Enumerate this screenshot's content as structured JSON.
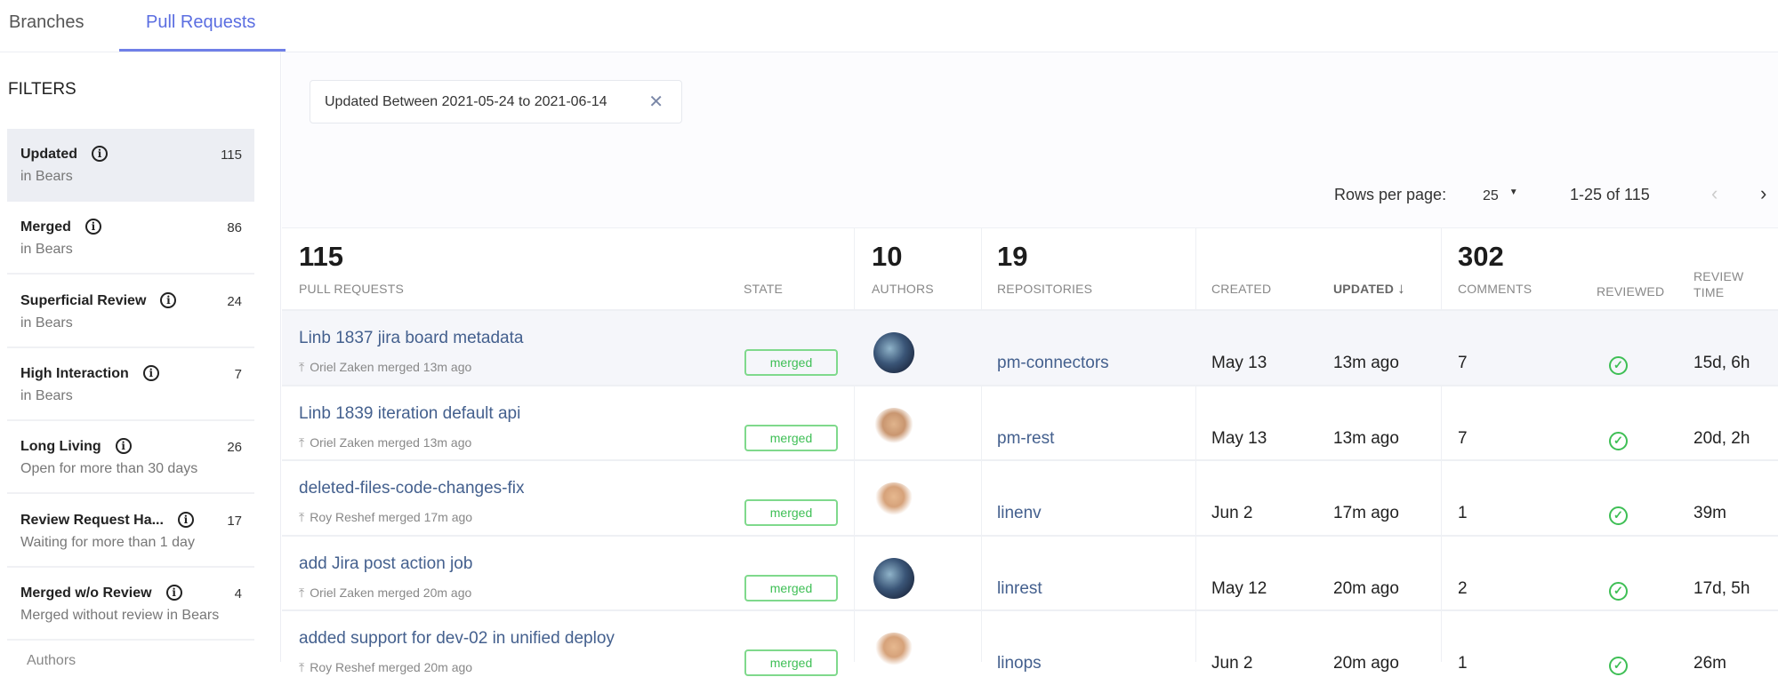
{
  "tabs": [
    {
      "label": "Branches",
      "active": false
    },
    {
      "label": "Pull Requests",
      "active": true
    }
  ],
  "sidebar": {
    "title": "FILTERS",
    "items": [
      {
        "name": "Updated",
        "count": "115",
        "sub": "in Bears",
        "active": true
      },
      {
        "name": "Merged",
        "count": "86",
        "sub": "in Bears"
      },
      {
        "name": "Superficial Review",
        "count": "24",
        "sub": "in Bears"
      },
      {
        "name": "High Interaction",
        "count": "7",
        "sub": "in Bears"
      },
      {
        "name": "Long Living",
        "count": "26",
        "sub": "Open for more than 30 days"
      },
      {
        "name": "Review Request Ha...",
        "count": "17",
        "sub": "Waiting for more than 1 day"
      },
      {
        "name": "Merged w/o Review",
        "count": "4",
        "sub": "Merged without review in Bears"
      }
    ],
    "next_section": "Authors"
  },
  "filter_chip": {
    "label": "Updated Between 2021-05-24 to 2021-06-14",
    "close_icon": "close-icon"
  },
  "pagination": {
    "rows_label": "Rows per page:",
    "rows_value": "25",
    "range": "1-25 of 115",
    "prev": "‹",
    "next": "›"
  },
  "table": {
    "totals": {
      "pull_requests": "115",
      "authors": "10",
      "repositories": "19",
      "comments": "302"
    },
    "headers": {
      "pull_requests": "PULL REQUESTS",
      "state": "STATE",
      "authors": "AUTHORS",
      "repositories": "REPOSITORIES",
      "created": "CREATED",
      "updated": "UPDATED",
      "comments": "COMMENTS",
      "reviewed": "REVIEWED",
      "review_time_1": "REVIEW",
      "review_time_2": "TIME"
    },
    "sort": {
      "column": "UPDATED",
      "direction": "desc",
      "icon": "↓"
    },
    "rows": [
      {
        "title": "Linb 1837 jira board metadata",
        "sub": "Oriel Zaken merged 13m ago",
        "state": "merged",
        "repo": "pm-connectors",
        "created": "May 13",
        "updated": "13m ago",
        "comments": "7",
        "reviewed": true,
        "review_time": "15d, 6h"
      },
      {
        "title": "Linb 1839 iteration default api",
        "sub": "Oriel Zaken merged 13m ago",
        "state": "merged",
        "repo": "pm-rest",
        "created": "May 13",
        "updated": "13m ago",
        "comments": "7",
        "reviewed": true,
        "review_time": "20d, 2h"
      },
      {
        "title": "deleted-files-code-changes-fix",
        "sub": "Roy Reshef merged 17m ago",
        "state": "merged",
        "repo": "linenv",
        "created": "Jun 2",
        "updated": "17m ago",
        "comments": "1",
        "reviewed": true,
        "review_time": "39m"
      },
      {
        "title": "add Jira post action job",
        "sub": "Oriel Zaken merged 20m ago",
        "state": "merged",
        "repo": "linrest",
        "created": "May 12",
        "updated": "20m ago",
        "comments": "2",
        "reviewed": true,
        "review_time": "17d, 5h"
      },
      {
        "title": "added support for dev-02 in unified deploy",
        "sub": "Roy Reshef merged 20m ago",
        "state": "merged",
        "repo": "linops",
        "created": "Jun 2",
        "updated": "20m ago",
        "comments": "1",
        "reviewed": true,
        "review_time": "26m"
      }
    ]
  },
  "colors": {
    "accent": "#5b6ee1",
    "link": "#44608e",
    "merged": "#3ebf55"
  }
}
